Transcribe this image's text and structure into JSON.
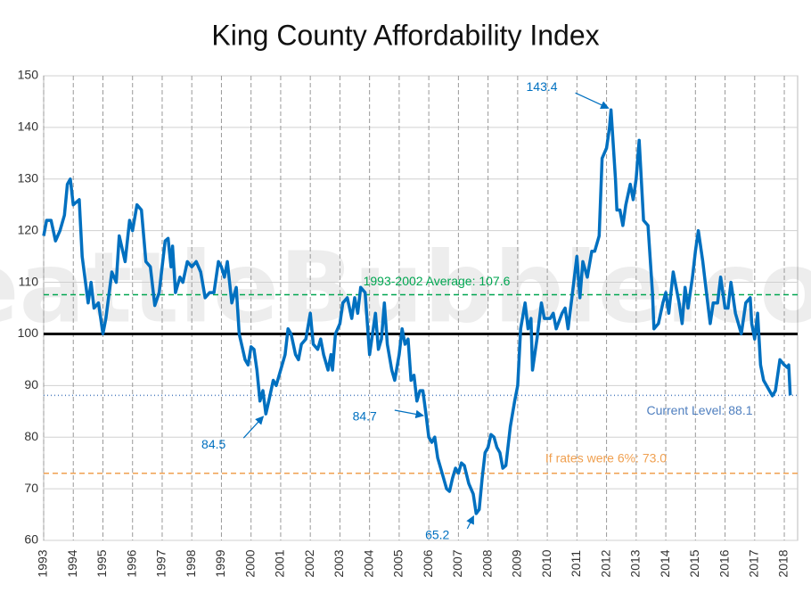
{
  "chart_data": {
    "type": "line",
    "title": "King County Affordability Index",
    "watermark": "SeattleBubble.com",
    "xlim": [
      1993,
      2018.45
    ],
    "ylim": [
      60,
      150
    ],
    "xticks": [
      1993,
      1994,
      1995,
      1996,
      1997,
      1998,
      1999,
      2000,
      2001,
      2002,
      2003,
      2004,
      2005,
      2006,
      2007,
      2008,
      2009,
      2010,
      2011,
      2012,
      2013,
      2014,
      2015,
      2016,
      2017,
      2018
    ],
    "yticks": [
      60,
      70,
      80,
      90,
      100,
      110,
      120,
      130,
      140,
      150
    ],
    "grid": true,
    "series": [
      {
        "color": "#0070c0",
        "x": [
          1993.0,
          1993.1,
          1993.25,
          1993.4,
          1993.55,
          1993.7,
          1993.8,
          1993.9,
          1994.0,
          1994.2,
          1994.3,
          1994.5,
          1994.6,
          1994.7,
          1994.85,
          1995.0,
          1995.1,
          1995.3,
          1995.45,
          1995.55,
          1995.75,
          1995.9,
          1996.0,
          1996.15,
          1996.3,
          1996.45,
          1996.6,
          1996.75,
          1996.9,
          1997.1,
          1997.2,
          1997.3,
          1997.35,
          1997.45,
          1997.6,
          1997.7,
          1997.85,
          1998.0,
          1998.15,
          1998.3,
          1998.45,
          1998.6,
          1998.75,
          1998.9,
          1999.0,
          1999.1,
          1999.2,
          1999.35,
          1999.5,
          1999.6,
          1999.8,
          1999.9,
          2000.0,
          2000.1,
          2000.2,
          2000.3,
          2000.4,
          2000.5,
          2000.6,
          2000.75,
          2000.85,
          2001.0,
          2001.15,
          2001.25,
          2001.35,
          2001.5,
          2001.6,
          2001.7,
          2001.85,
          2002.0,
          2002.1,
          2002.25,
          2002.35,
          2002.45,
          2002.6,
          2002.7,
          2002.75,
          2002.85,
          2003.0,
          2003.1,
          2003.25,
          2003.4,
          2003.5,
          2003.6,
          2003.7,
          2003.85,
          2004.0,
          2004.1,
          2004.2,
          2004.3,
          2004.4,
          2004.5,
          2004.6,
          2004.75,
          2004.85,
          2005.0,
          2005.1,
          2005.2,
          2005.3,
          2005.4,
          2005.5,
          2005.6,
          2005.7,
          2005.8,
          2005.9,
          2006.0,
          2006.1,
          2006.2,
          2006.3,
          2006.45,
          2006.6,
          2006.7,
          2006.8,
          2006.9,
          2007.0,
          2007.1,
          2007.2,
          2007.35,
          2007.5,
          2007.6,
          2007.7,
          2007.8,
          2007.9,
          2008.0,
          2008.1,
          2008.2,
          2008.3,
          2008.4,
          2008.5,
          2008.6,
          2008.75,
          2008.9,
          2009.0,
          2009.1,
          2009.25,
          2009.35,
          2009.45,
          2009.5,
          2009.65,
          2009.8,
          2009.9,
          2010.1,
          2010.2,
          2010.3,
          2010.5,
          2010.6,
          2010.7,
          2010.85,
          2011.0,
          2011.1,
          2011.2,
          2011.35,
          2011.5,
          2011.6,
          2011.75,
          2011.85,
          2012.0,
          2012.1,
          2012.15,
          2012.3,
          2012.35,
          2012.45,
          2012.55,
          2012.65,
          2012.8,
          2012.9,
          2013.0,
          2013.1,
          2013.25,
          2013.4,
          2013.55,
          2013.6,
          2013.75,
          2013.9,
          2014.0,
          2014.1,
          2014.25,
          2014.35,
          2014.45,
          2014.55,
          2014.65,
          2014.75,
          2014.9,
          2015.0,
          2015.1,
          2015.25,
          2015.35,
          2015.5,
          2015.6,
          2015.75,
          2015.85,
          2016.0,
          2016.1,
          2016.2,
          2016.35,
          2016.55,
          2016.7,
          2016.85,
          2016.9,
          2017.0,
          2017.1,
          2017.2,
          2017.3,
          2017.5,
          2017.6,
          2017.7,
          2017.85,
          2018.0,
          2018.1,
          2018.15,
          2018.2
        ],
        "values": [
          119,
          122,
          122,
          118,
          120,
          123,
          129,
          130,
          125,
          126,
          115,
          106,
          110,
          105,
          106,
          100,
          103,
          112,
          110,
          119,
          114,
          122,
          120,
          125,
          124,
          114,
          113,
          105.5,
          108,
          118,
          118.5,
          113,
          117,
          108,
          111,
          110,
          114,
          113,
          114,
          112,
          107,
          108,
          108,
          114,
          113,
          111,
          114,
          106,
          109,
          100,
          95,
          94,
          97.5,
          97,
          93,
          87,
          89,
          84.5,
          87,
          91,
          90,
          93,
          96,
          101,
          100,
          96,
          95,
          98,
          99,
          104,
          98,
          97,
          99,
          96,
          93,
          96,
          93,
          100,
          102,
          106,
          107,
          103,
          107,
          104,
          109,
          108,
          96,
          100,
          104,
          97,
          99,
          106,
          98,
          93,
          91,
          96,
          101,
          98,
          99,
          91,
          92,
          87,
          89,
          89,
          84.7,
          80,
          79,
          80,
          76,
          73,
          70,
          69.5,
          72,
          74,
          73,
          75,
          74.5,
          71,
          69,
          65.2,
          66,
          72,
          77,
          78,
          80.5,
          80,
          78,
          77,
          74,
          74.5,
          82,
          87,
          90,
          101,
          106,
          101,
          103,
          93,
          99,
          106,
          103,
          103,
          104,
          101,
          104,
          105,
          101,
          108,
          115,
          107,
          114,
          111,
          116,
          116,
          119,
          134,
          136,
          140,
          143.4,
          130,
          124,
          124,
          121,
          125,
          129,
          126,
          130,
          137.5,
          122,
          121,
          108,
          101,
          102,
          106,
          108,
          104,
          112,
          109,
          106,
          102,
          109,
          105,
          111,
          116,
          120,
          114,
          109,
          102,
          106,
          106,
          111,
          105,
          105,
          110,
          104,
          100,
          106,
          107,
          102,
          99,
          104,
          94,
          91,
          89,
          88,
          89,
          95,
          94,
          93.5,
          94,
          88.1
        ]
      }
    ],
    "reference_lines": [
      {
        "value": 100,
        "color": "#000000"
      },
      {
        "value": 107.6,
        "color": "#00a651",
        "label": "1993-2002 Average: 107.6"
      },
      {
        "value": 73.0,
        "color": "#f0a050",
        "label": "If rates were 6%: 73.0"
      },
      {
        "value": 88.1,
        "color": "#4f7fbf",
        "label": "Current Level: 88.1"
      }
    ],
    "annotations": [
      {
        "x": 2012.15,
        "y": 143.4,
        "label": "143.4"
      },
      {
        "x": 2000.5,
        "y": 84.5,
        "label": "84.5"
      },
      {
        "x": 2005.9,
        "y": 84.7,
        "label": "84.7"
      },
      {
        "x": 2007.6,
        "y": 65.2,
        "label": "65.2"
      }
    ]
  }
}
